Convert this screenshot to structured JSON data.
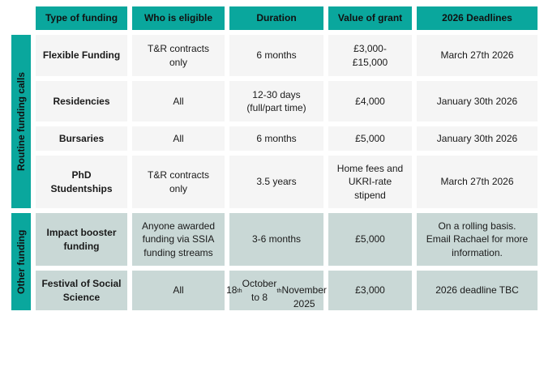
{
  "colors": {
    "accent_teal": "#0aa79d",
    "routine_row_bg": "#f5f5f5",
    "other_row_bg": "#c9d8d6",
    "text": "#1a1a1a"
  },
  "table": {
    "headers": [
      "Type of funding",
      "Who is eligible",
      "Duration",
      "Value of grant",
      "2026 Deadlines"
    ],
    "groups": [
      {
        "label": "Routine funding calls",
        "rows": [
          {
            "name": "Flexible Funding",
            "eligible": "T&R contracts\nonly",
            "duration": "6 months",
            "value": "£3,000-\n£15,000",
            "deadline": "March 27th 2026"
          },
          {
            "name": "Residencies",
            "eligible": "All",
            "duration": "12-30 days\n(full/part time)",
            "value": "£4,000",
            "deadline": "January 30th 2026"
          },
          {
            "name": "Bursaries",
            "eligible": "All",
            "duration": "6 months",
            "value": "£5,000",
            "deadline": "January 30th 2026"
          },
          {
            "name": "PhD\nStudentships",
            "eligible": "T&R contracts\nonly",
            "duration": "3.5 years",
            "value": "Home fees and\nUKRI-rate\nstipend",
            "deadline": "March 27th 2026"
          }
        ]
      },
      {
        "label": "Other funding",
        "rows": [
          {
            "name": "Impact booster\nfunding",
            "eligible": "Anyone awarded\nfunding via SSIA\nfunding streams",
            "duration": "3-6 months",
            "value": "£5,000",
            "deadline": "On a rolling basis.\nEmail Rachael for more\ninformation."
          },
          {
            "name": "Festival of Social\nScience",
            "eligible": "All",
            "duration": "18^th^ October to 8^th^\nNovember 2025",
            "value": "£3,000",
            "deadline": "2026 deadline TBC"
          }
        ]
      }
    ]
  }
}
